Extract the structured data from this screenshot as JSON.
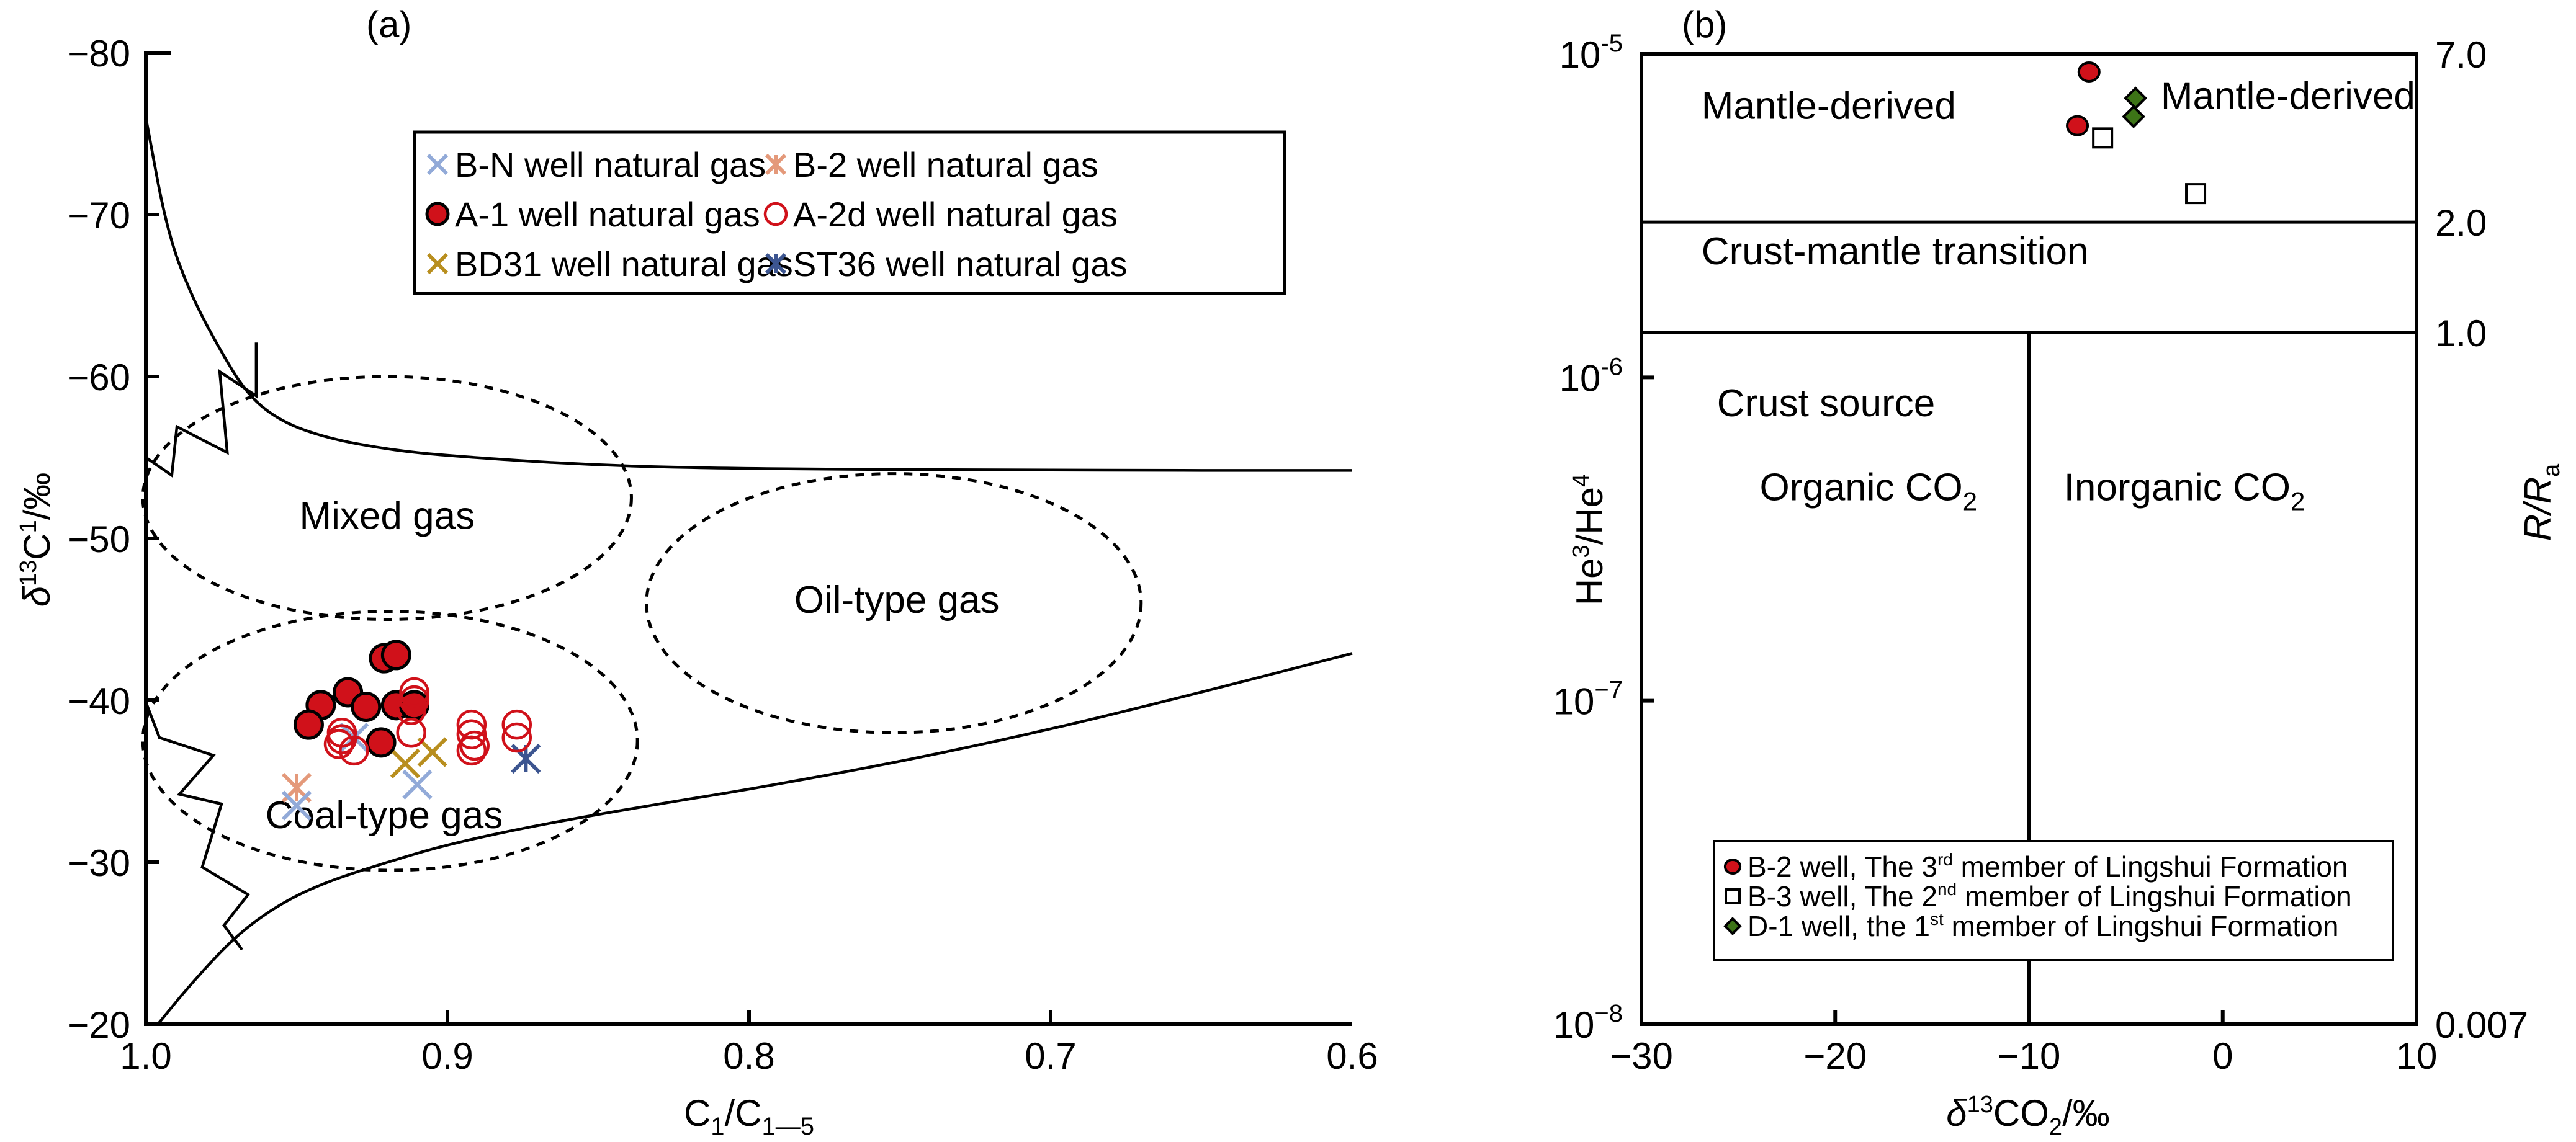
{
  "chart_data": [
    {
      "panel": "(a)",
      "type": "scatter",
      "xlabel": "C1/C1—5",
      "xlabel_main": "C",
      "xlabel_sub1": "1",
      "xlabel_slash": "/C",
      "xlabel_sub2": "1—5",
      "ylabel_delta": "δ",
      "ylabel_sup": "13",
      "ylabel_main": "C",
      "ylabel_sup2": "1",
      "ylabel_tail": "/‰",
      "xlim": [
        1.0,
        0.6
      ],
      "ylim": [
        -80,
        -20
      ],
      "x_reversed": true,
      "y_reversed": true,
      "x_ticks": [
        {
          "v": 1.0,
          "label": "1.0"
        },
        {
          "v": 0.9,
          "label": "0.9"
        },
        {
          "v": 0.8,
          "label": "0.8"
        },
        {
          "v": 0.7,
          "label": "0.7"
        },
        {
          "v": 0.6,
          "label": "0.6"
        }
      ],
      "y_ticks": [
        {
          "v": -80,
          "label": "−80"
        },
        {
          "v": -70,
          "label": "−70"
        },
        {
          "v": -60,
          "label": "−60"
        },
        {
          "v": -50,
          "label": "−50"
        },
        {
          "v": -40,
          "label": "−40"
        },
        {
          "v": -30,
          "label": "−30"
        },
        {
          "v": -20,
          "label": "−20"
        }
      ],
      "grid": false,
      "legend_position": "top-right",
      "regions": [
        {
          "label": "Mixed gas",
          "cx": 0.92,
          "cy": -52.5,
          "rx": 0.081,
          "ry": 7.5,
          "text_at": [
            0.92,
            -50.6
          ]
        },
        {
          "label": "Oil-type gas",
          "cx": 0.752,
          "cy": -46,
          "rx": 0.082,
          "ry": 8.0,
          "text_at": [
            0.751,
            -45.4
          ]
        },
        {
          "label": "Coal-type gas",
          "cx": 0.919,
          "cy": -37.5,
          "rx": 0.082,
          "ry": 8.0,
          "text_at": [
            0.921,
            -32.1
          ]
        }
      ],
      "boundary_curves": [
        {
          "name": "upper-boundary",
          "points": [
            [
              1.0,
              -76
            ],
            [
              0.993,
              -69
            ],
            [
              0.985,
              -65
            ],
            [
              0.975,
              -61.5
            ],
            [
              0.966,
              -58.8
            ],
            [
              0.955,
              -57.2
            ],
            [
              0.94,
              -56.2
            ],
            [
              0.92,
              -55.5
            ],
            [
              0.9,
              -55.1
            ],
            [
              0.85,
              -54.5
            ],
            [
              0.8,
              -54.3
            ],
            [
              0.7,
              -54.2
            ],
            [
              0.6,
              -54.2
            ]
          ]
        },
        {
          "name": "lower-boundary",
          "points": [
            [
              0.996,
              -20
            ],
            [
              0.985,
              -22.5
            ],
            [
              0.97,
              -25.5
            ],
            [
              0.955,
              -27.5
            ],
            [
              0.94,
              -28.8
            ],
            [
              0.92,
              -30
            ],
            [
              0.9,
              -31.1
            ],
            [
              0.87,
              -32.3
            ],
            [
              0.83,
              -33.6
            ],
            [
              0.8,
              -34.5
            ],
            [
              0.75,
              -36.2
            ],
            [
              0.7,
              -38.2
            ],
            [
              0.65,
              -40.5
            ],
            [
              0.6,
              -42.9
            ]
          ]
        },
        {
          "name": "upper-zigzag",
          "points": [
            [
              1.0,
              -55
            ],
            [
              0.9914,
              -53.9
            ],
            [
              0.9897,
              -56.9
            ],
            [
              0.973,
              -55.3
            ],
            [
              0.9755,
              -60.3
            ],
            [
              0.9634,
              -58.8
            ],
            [
              0.9634,
              -62.1
            ]
          ]
        },
        {
          "name": "lower-zigzag",
          "points": [
            [
              0.9996,
              -39.7
            ],
            [
              0.9955,
              -37.7
            ],
            [
              0.9776,
              -36.6
            ],
            [
              0.9889,
              -34.2
            ],
            [
              0.9749,
              -33.6
            ],
            [
              0.9813,
              -29.7
            ],
            [
              0.9661,
              -28.0
            ],
            [
              0.9741,
              -26.1
            ],
            [
              0.9681,
              -24.6
            ]
          ]
        }
      ],
      "series": [
        {
          "name": "B-N well natural gas",
          "marker": "x",
          "color": "#92aad8",
          "points": [
            [
              0.95,
              -33.5
            ],
            [
              0.91,
              -34.8
            ],
            [
              0.931,
              -37.7
            ]
          ]
        },
        {
          "name": "B-2 well natural gas",
          "marker": "asterisk",
          "color": "#e4997a",
          "points": [
            [
              0.95,
              -34.6
            ]
          ]
        },
        {
          "name": "A-1 well natural gas",
          "marker": "filled-circle",
          "color": "#d0111a",
          "points": [
            [
              0.921,
              -42.6
            ],
            [
              0.917,
              -42.8
            ],
            [
              0.933,
              -40.5
            ],
            [
              0.942,
              -39.7
            ],
            [
              0.946,
              -38.5
            ],
            [
              0.927,
              -39.6
            ],
            [
              0.917,
              -39.7
            ],
            [
              0.922,
              -37.4
            ],
            [
              0.911,
              -39.7
            ]
          ]
        },
        {
          "name": "A-2d well natural gas",
          "marker": "open-circle",
          "color": "#d0111a",
          "points": [
            [
              0.935,
              -38.0
            ],
            [
              0.935,
              -37.6
            ],
            [
              0.931,
              -36.9
            ],
            [
              0.936,
              -37.3
            ],
            [
              0.911,
              -40.5
            ],
            [
              0.911,
              -40.0
            ],
            [
              0.912,
              -39.4
            ],
            [
              0.912,
              -38.0
            ],
            [
              0.892,
              -38.5
            ],
            [
              0.892,
              -37.9
            ],
            [
              0.891,
              -37.2
            ],
            [
              0.892,
              -36.9
            ],
            [
              0.877,
              -38.5
            ],
            [
              0.877,
              -37.7
            ]
          ]
        },
        {
          "name": "BD31 well natural gas",
          "marker": "x",
          "color": "#b88e1e",
          "points": [
            [
              0.914,
              -36.1
            ],
            [
              0.905,
              -36.8
            ]
          ]
        },
        {
          "name": "ST36 well natural gas",
          "marker": "asterisk",
          "color": "#3c5590",
          "points": [
            [
              0.874,
              -36.4
            ]
          ]
        }
      ]
    },
    {
      "panel": "(b)",
      "type": "scatter",
      "xlabel_delta": "δ",
      "xlabel_sup": "13",
      "xlabel_main": "CO",
      "xlabel_sub": "2",
      "xlabel_tail": "/‰",
      "ylabel_left": "He3/He4",
      "ylabel_left_a": "He",
      "ylabel_left_sup1": "3",
      "ylabel_left_b": "/He",
      "ylabel_left_sup2": "4",
      "ylabel_right_a": "R",
      "ylabel_right_b": "/R",
      "ylabel_right_sub": "a",
      "xlim": [
        -30,
        10
      ],
      "ylim": [
        1e-08,
        1e-05
      ],
      "y_scale": "log",
      "x_ticks": [
        {
          "v": -30,
          "label": "−30"
        },
        {
          "v": -20,
          "label": "−20"
        },
        {
          "v": -10,
          "label": "−10"
        },
        {
          "v": 0,
          "label": "0"
        },
        {
          "v": 10,
          "label": "10"
        }
      ],
      "y_ticks": [
        {
          "v": -5,
          "base": "10",
          "exp": "-5"
        },
        {
          "v": -6,
          "base": "10",
          "exp": "-6"
        },
        {
          "v": -7,
          "base": "10",
          "exp": "−7"
        },
        {
          "v": -8,
          "base": "10",
          "exp": "−8"
        }
      ],
      "right_ticks": [
        {
          "log": -5,
          "label": "7.0"
        },
        {
          "log": -5.52,
          "label": "2.0"
        },
        {
          "log": -5.861,
          "label": "1.0"
        },
        {
          "log": -8,
          "label": "0.007"
        }
      ],
      "grid": false,
      "boundaries": {
        "mantle_lower_log": -5.52,
        "crust_upper_log": -5.861,
        "organic_inorganic_x": -10
      },
      "regions": [
        {
          "label": "Mantle-derived",
          "x": -26.9,
          "log": -5.2
        },
        {
          "label": "Mantle-derived",
          "x": -3.2,
          "log": -5.17
        },
        {
          "label": "Crust-mantle transition",
          "x": -26.9,
          "log": -5.65
        },
        {
          "label": "Crust source",
          "x": -26.1,
          "log": -6.12
        },
        {
          "label": "Organic CO",
          "sub": "2",
          "x": -23.9,
          "log": -6.38
        },
        {
          "label": "Inorganic CO",
          "sub": "2",
          "x": -8.2,
          "log": -6.38
        }
      ],
      "legend_position": "bottom-center",
      "series": [
        {
          "name": "B-2 well, The 3rd member of Lingshui Formation",
          "label_a": "B-2 well, The 3",
          "label_sup": "rd",
          "label_b": " member of Lingshui Formation",
          "marker": "circle",
          "color": "#d0111a",
          "points": [
            [
              -6.9,
              8.8e-06
            ],
            [
              -7.5,
              6e-06
            ]
          ]
        },
        {
          "name": "B-3 well, The 2nd member of Lingshui Formation",
          "label_a": "B-3 well, The 2",
          "label_sup": "nd",
          "label_b": " member of Lingshui Formation",
          "marker": "square",
          "color": "#ffffff",
          "points": [
            [
              -6.2,
              5.5e-06
            ],
            [
              -1.4,
              3.7e-06
            ]
          ]
        },
        {
          "name": "D-1 well, the 1st member of Lingshui Formation",
          "label_a": "D-1 well, the 1",
          "label_sup": "st",
          "label_b": " member of Lingshui Formation",
          "marker": "diamond",
          "color": "#3d7417",
          "points": [
            [
              -4.5,
              7.3e-06
            ],
            [
              -4.6,
              6.4e-06
            ]
          ]
        }
      ]
    }
  ]
}
